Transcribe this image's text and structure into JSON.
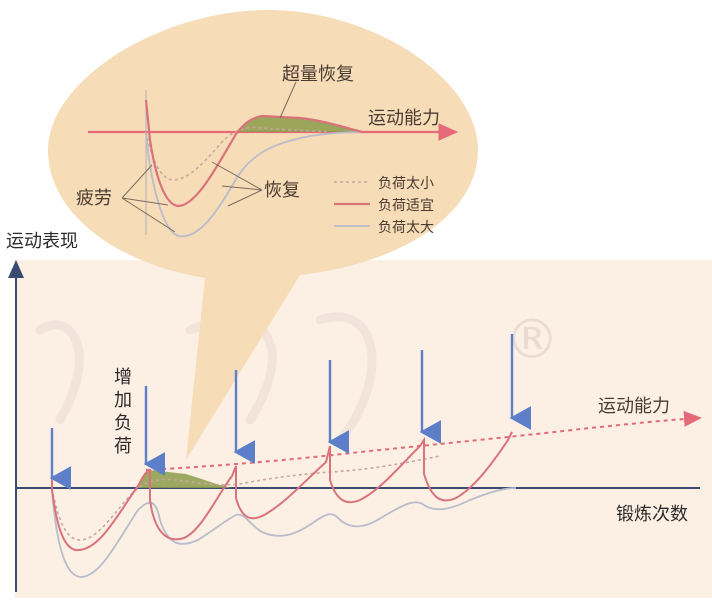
{
  "callout": {
    "title": "超量恢复",
    "axis_label": "运动能力",
    "fatigue_label": "疲劳",
    "recovery_label": "恢复",
    "legend": [
      {
        "label": "负荷太小",
        "color": "#c9a7a0"
      },
      {
        "label": "负荷适宜",
        "color": "#d9727a"
      },
      {
        "label": "负荷太大",
        "color": "#b9bccb"
      }
    ]
  },
  "main": {
    "y_axis_label": "运动表现",
    "x_axis_label": "锻炼次数",
    "trend_label": "运动能力",
    "load_label": "增\n加\n负\n荷",
    "watermark": "®"
  },
  "colors": {
    "callout_fill": "#f6dcb7",
    "plot_bg": "#fcf0e4",
    "axis": "#3b4a73",
    "arrow": "#5d7fc9",
    "supercomp_fill": "#8c9c4a",
    "trend": "#e46a7a",
    "curve_optimal": "#d9727a",
    "curve_small": "#c9a7a0",
    "curve_large": "#b9bccb"
  }
}
